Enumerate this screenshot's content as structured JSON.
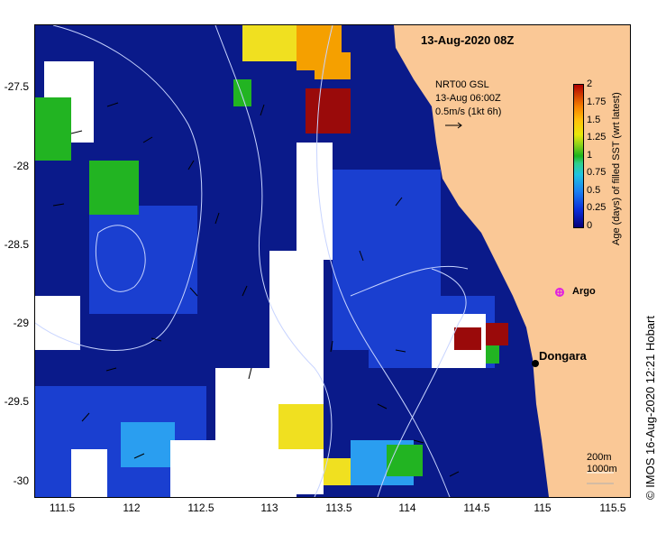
{
  "title": "13-Aug-2020 08Z",
  "info_lines": [
    "NRT00 GSL",
    "13-Aug 06:00Z",
    "0.5m/s (1kt 6h)"
  ],
  "colorbar": {
    "title": "Age (days) of filled SST (wrt latest)",
    "ticks": [
      "2",
      "1.75",
      "1.5",
      "1.25",
      "1",
      "0.75",
      "0.5",
      "0.25",
      "0"
    ]
  },
  "credit": "© IMOS 16-Aug-2020 12:21 Hobart",
  "places": {
    "dongara": "Dongara",
    "argo": "Argo"
  },
  "scale_labels": [
    "200m",
    "1000m"
  ],
  "axes": {
    "y_ticks": [
      "-27.5",
      "-28",
      "-28.5",
      "-29",
      "-29.5",
      "-30"
    ],
    "x_ticks": [
      "111.5",
      "112",
      "112.5",
      "113",
      "113.5",
      "114",
      "114.5",
      "115",
      "115.5"
    ]
  },
  "colors": {
    "land": "#fac896",
    "ocean_deep": "#0a1a8a",
    "no_data": "#ffffff",
    "argo_marker": "#e020e0"
  }
}
